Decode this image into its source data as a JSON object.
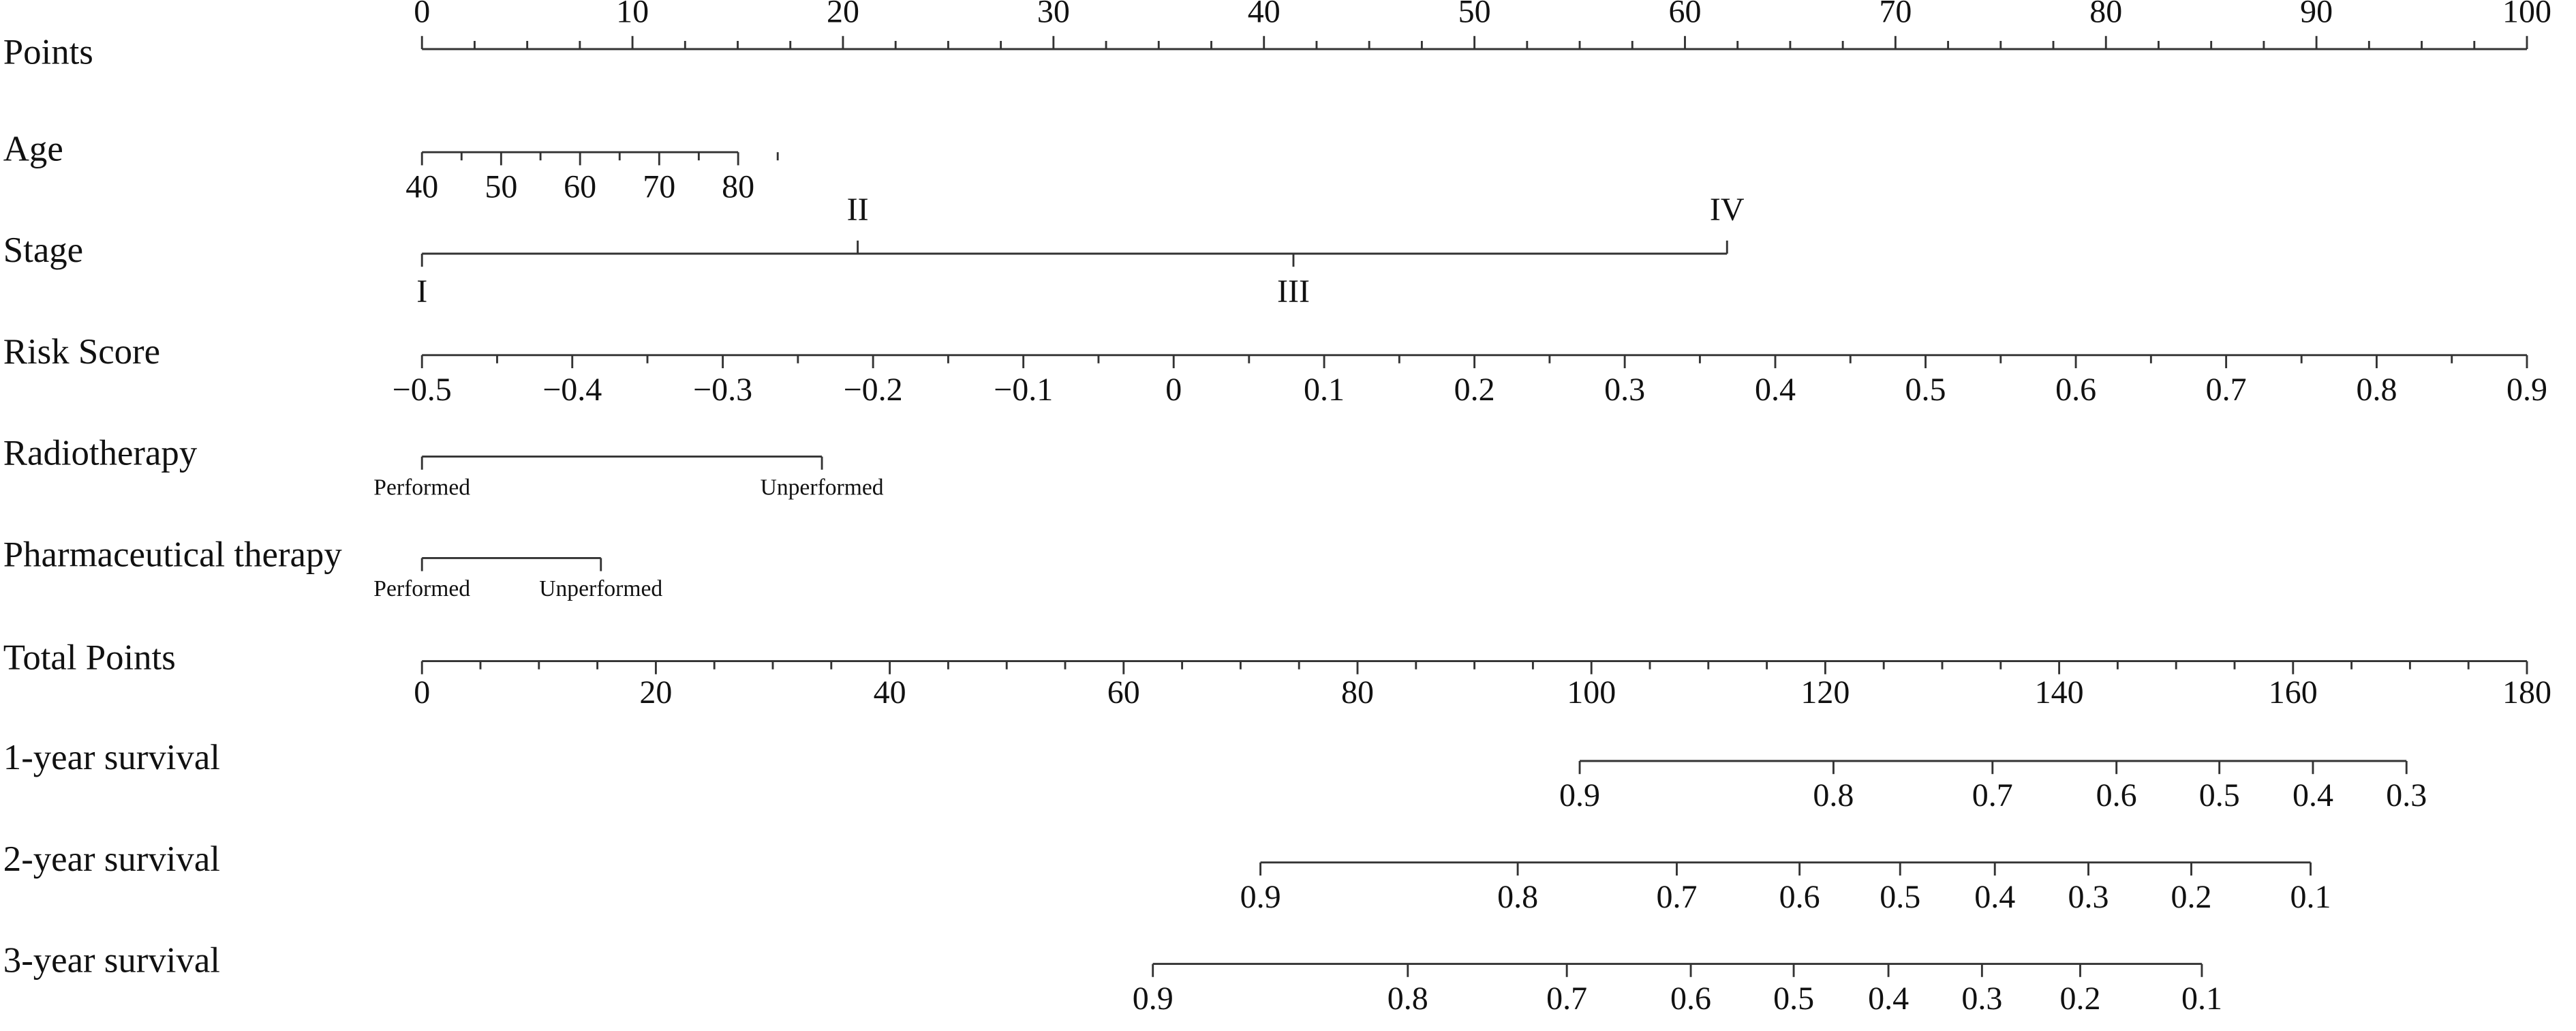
{
  "chart_data": {
    "type": "nomogram",
    "points_axis": {
      "label": "Points",
      "xlim": [
        0,
        100
      ],
      "xticks": [
        0,
        10,
        20,
        30,
        40,
        50,
        60,
        70,
        80,
        90,
        100
      ],
      "minor_ticks": [
        2.5,
        5,
        7.5,
        12.5,
        15,
        17.5,
        22.5,
        25,
        27.5,
        32.5,
        35,
        37.5,
        42.5,
        45,
        47.5,
        52.5,
        55,
        57.5,
        62.5,
        65,
        67.5,
        72.5,
        75,
        77.5,
        82.5,
        85,
        87.5,
        92.5,
        95,
        97.5
      ]
    },
    "variables": [
      {
        "label": "Age",
        "ticks": [
          40,
          50,
          60,
          70,
          80
        ],
        "positions": [
          0,
          3.76,
          7.51,
          11.27,
          15.02
        ],
        "minor_positions": [
          1.88,
          5.63,
          9.39,
          13.15,
          16.9
        ]
      },
      {
        "label": "Stage",
        "ticks": [
          "I",
          "II",
          "III",
          "IV"
        ],
        "positions": [
          0,
          20.7,
          41.4,
          62
        ]
      },
      {
        "label": "Risk Score",
        "ticks": [
          {
            "value": -0.5,
            "label": "−0.5"
          },
          {
            "value": -0.4,
            "label": "−0.4"
          },
          {
            "value": -0.3,
            "label": "−0.3"
          },
          {
            "value": -0.2,
            "label": "−0.2"
          },
          {
            "value": -0.1,
            "label": "−0.1"
          },
          0,
          0.1,
          0.2,
          0.3,
          0.4,
          0.5,
          0.6,
          0.7,
          0.8,
          0.9
        ],
        "positions": [
          0,
          7.14,
          14.29,
          21.43,
          28.57,
          35.71,
          42.86,
          50,
          57.14,
          64.29,
          71.43,
          78.57,
          85.71,
          92.86,
          100
        ],
        "minor_positions": [
          3.57,
          10.71,
          17.86,
          25,
          32.14,
          39.29,
          46.43,
          53.57,
          60.71,
          67.86,
          75,
          82.14,
          89.29,
          96.43
        ]
      },
      {
        "label": "Radiotherapy",
        "ticks": [
          "Performed",
          "Unperformed"
        ],
        "positions": [
          0,
          19
        ]
      },
      {
        "label": "Pharmaceutical therapy",
        "ticks": [
          "Performed",
          "Unperformed"
        ],
        "positions": [
          0,
          8.5
        ]
      }
    ],
    "total_axis": {
      "label": "Total Points",
      "xlim": [
        0,
        180
      ],
      "xticks": [
        0,
        20,
        40,
        60,
        80,
        100,
        120,
        140,
        160,
        180
      ],
      "minor_ticks": [
        5,
        10,
        15,
        25,
        30,
        35,
        45,
        50,
        55,
        65,
        70,
        75,
        85,
        90,
        95,
        105,
        110,
        115,
        125,
        130,
        135,
        145,
        150,
        155,
        165,
        170,
        175
      ]
    },
    "survival": [
      {
        "label": "1-year survival",
        "ticks": [
          0.9,
          0.8,
          0.7,
          0.6,
          0.5,
          0.4,
          0.3
        ],
        "positions": [
          99,
          120.7,
          134.3,
          144.9,
          153.7,
          161.7,
          169.7
        ]
      },
      {
        "label": "2-year survival",
        "ticks": [
          0.9,
          0.8,
          0.7,
          0.6,
          0.5,
          0.4,
          0.3,
          0.2,
          0.1
        ],
        "positions": [
          71.7,
          93.7,
          107.3,
          117.8,
          126.4,
          134.5,
          142.5,
          151.3,
          161.5
        ]
      },
      {
        "label": "3-year survival",
        "ticks": [
          0.9,
          0.8,
          0.7,
          0.6,
          0.5,
          0.4,
          0.3,
          0.2,
          0.1
        ],
        "positions": [
          62.5,
          84.3,
          97.9,
          108.5,
          117.3,
          125.4,
          133.4,
          141.8,
          152.2
        ]
      }
    ]
  }
}
